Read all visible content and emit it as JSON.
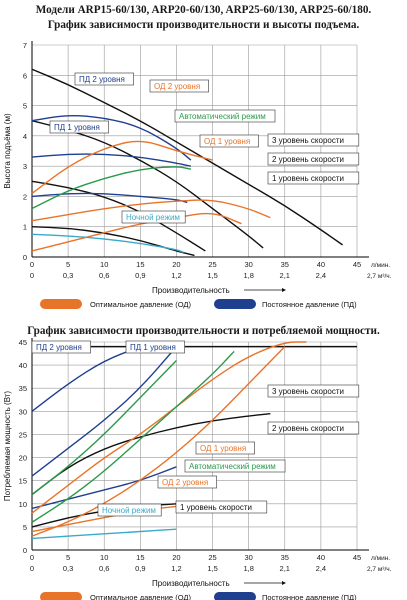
{
  "header": {
    "title_line1": "Модели ARP15-60/130, ARP20-60/130, ARP25-60/130, ARP25-60/180.",
    "title_line2": "График зависимости производительности и высоты подъема.",
    "title_chart2": "График зависимости производительности и потребляемой мощности."
  },
  "colors": {
    "od": "#e8742a",
    "pd": "#1f3f8f",
    "auto": "#2a9a4a",
    "night": "#3aa9c9",
    "black": "#111111",
    "grid": "#9a9a9a"
  },
  "legend": {
    "od_label": "Оптимальное давление (ОД)",
    "pd_label": "Постоянное давление (ПД)"
  },
  "chart_data": [
    {
      "type": "line",
      "title": "График зависимости производительности и высоты подъема.",
      "xlabel": "Производительность",
      "ylabel": "Высота подъёма (м)",
      "x_unit_top": "л/мин.",
      "x_unit_bottom": "2,7 м³/ч.",
      "xlim": [
        0,
        45
      ],
      "ylim": [
        0,
        7
      ],
      "xticks": [
        "0",
        "5",
        "10",
        "15",
        "20",
        "25",
        "30",
        "35",
        "40",
        "45"
      ],
      "xticks2": [
        "0",
        "0,3",
        "0,6",
        "0,9",
        "1,2",
        "1,5",
        "1,8",
        "2,1",
        "2,4"
      ],
      "yticks": [
        "0",
        "1",
        "2",
        "3",
        "4",
        "5",
        "6",
        "7"
      ],
      "grid": true,
      "series": [
        {
          "name": "3 уровень скорости",
          "color": "black",
          "x": [
            0,
            5,
            10,
            15,
            20,
            25,
            30,
            35,
            40,
            43
          ],
          "y": [
            6.2,
            5.7,
            5.1,
            4.5,
            3.8,
            3.1,
            2.4,
            1.7,
            0.9,
            0.4
          ]
        },
        {
          "name": "2 уровень скорости",
          "color": "black",
          "x": [
            0,
            5,
            10,
            15,
            20,
            25,
            30,
            32
          ],
          "y": [
            4.5,
            4.2,
            3.8,
            3.2,
            2.5,
            1.6,
            0.7,
            0.3
          ]
        },
        {
          "name": "1 уровень скорости",
          "color": "black",
          "x": [
            0,
            5,
            10,
            15,
            20,
            24
          ],
          "y": [
            2.5,
            2.3,
            2.0,
            1.5,
            0.8,
            0.2
          ]
        },
        {
          "name": "",
          "color": "black",
          "x": [
            0,
            5,
            10,
            15,
            20,
            22.5
          ],
          "y": [
            1.0,
            0.95,
            0.8,
            0.55,
            0.2,
            0.05
          ]
        },
        {
          "name": "ПД 2 уровня",
          "color": "pd",
          "x": [
            0,
            5,
            10,
            15,
            20,
            22
          ],
          "y": [
            4.5,
            4.7,
            4.6,
            4.3,
            3.6,
            3.2
          ]
        },
        {
          "name": "ПД 1 уровня",
          "color": "pd",
          "x": [
            0,
            5,
            10,
            15,
            20,
            22
          ],
          "y": [
            3.3,
            3.4,
            3.4,
            3.3,
            3.1,
            3.0
          ]
        },
        {
          "name": "",
          "color": "pd",
          "x": [
            0,
            5,
            10,
            15,
            20,
            21.5
          ],
          "y": [
            2.0,
            2.1,
            2.1,
            2.0,
            1.9,
            1.8
          ]
        },
        {
          "name": "ОД 2 уровня",
          "color": "od",
          "x": [
            0,
            5,
            10,
            15,
            20,
            25
          ],
          "y": [
            2.1,
            3.0,
            3.6,
            3.9,
            3.5,
            3.2
          ]
        },
        {
          "name": "ОД 1 уровня",
          "color": "od",
          "x": [
            0,
            5,
            10,
            15,
            20,
            25,
            30,
            33
          ],
          "y": [
            1.2,
            1.4,
            1.6,
            1.75,
            1.85,
            1.9,
            1.6,
            1.3
          ]
        },
        {
          "name": "",
          "color": "od",
          "x": [
            0,
            5,
            10,
            15,
            20,
            25,
            29
          ],
          "y": [
            0.2,
            0.5,
            0.8,
            1.1,
            1.3,
            1.5,
            1.1
          ]
        },
        {
          "name": "Автоматический режим",
          "color": "auto",
          "x": [
            0,
            5,
            10,
            15,
            20,
            22
          ],
          "y": [
            1.6,
            2.2,
            2.6,
            2.9,
            3.0,
            2.9
          ]
        },
        {
          "name": "Ночной режим",
          "color": "night",
          "x": [
            0,
            5,
            10,
            15,
            20,
            21
          ],
          "y": [
            0.75,
            0.7,
            0.6,
            0.45,
            0.25,
            0.15
          ]
        }
      ]
    },
    {
      "type": "line",
      "title": "График зависимости производительности и потребляемой мощности.",
      "xlabel": "Производительность",
      "ylabel": "Потребляемая мощность (Вт)",
      "x_unit_top": "л/мин.",
      "x_unit_bottom": "2,7 м³/ч.",
      "xlim": [
        0,
        45
      ],
      "ylim": [
        0,
        45
      ],
      "xticks": [
        "0",
        "5",
        "10",
        "15",
        "20",
        "25",
        "30",
        "35",
        "40",
        "45"
      ],
      "xticks2": [
        "0",
        "0,3",
        "0,6",
        "0,9",
        "1,2",
        "1,5",
        "1,8",
        "2,1",
        "2,4"
      ],
      "yticks": [
        "0",
        "5",
        "10",
        "15",
        "20",
        "25",
        "30",
        "35",
        "40",
        "45"
      ],
      "grid": true,
      "series": [
        {
          "name": "3 уровень скорости",
          "color": "black",
          "x": [
            0,
            5,
            10,
            15,
            20,
            25,
            30,
            35,
            40,
            45
          ],
          "y": [
            44,
            44,
            44,
            44,
            44,
            44,
            44,
            44,
            44,
            44
          ]
        },
        {
          "name": "2 уровень скорости",
          "color": "black",
          "x": [
            0,
            5,
            10,
            15,
            20,
            25,
            30,
            33
          ],
          "y": [
            12,
            18,
            22,
            24.5,
            26.5,
            28,
            29,
            29.5
          ]
        },
        {
          "name": "1 уровень скорости",
          "color": "black",
          "x": [
            0,
            5,
            10,
            15,
            20,
            23
          ],
          "y": [
            5,
            7,
            8.5,
            9.5,
            10,
            10.2
          ]
        },
        {
          "name": "ПД 2 уровня",
          "color": "pd",
          "x": [
            0,
            5,
            10,
            15,
            20
          ],
          "y": [
            30,
            36,
            41,
            44,
            45
          ]
        },
        {
          "name": "ПД 1 уровня",
          "color": "pd",
          "x": [
            0,
            5,
            10,
            15,
            20
          ],
          "y": [
            16,
            22,
            28,
            35,
            44
          ]
        },
        {
          "name": "",
          "color": "pd",
          "x": [
            0,
            5,
            10,
            15,
            20
          ],
          "y": [
            9,
            11,
            13,
            15,
            18
          ]
        },
        {
          "name": "ОД 2 уровня",
          "color": "od",
          "x": [
            0,
            5,
            10,
            15,
            20,
            25,
            30,
            35
          ],
          "y": [
            3,
            6,
            10,
            15,
            21,
            28,
            36,
            44
          ]
        },
        {
          "name": "ОД 1 уровня",
          "color": "od",
          "x": [
            0,
            5,
            10,
            15,
            20,
            25,
            30,
            35,
            38
          ],
          "y": [
            8,
            14,
            20,
            25,
            31,
            37,
            42,
            45,
            45
          ]
        },
        {
          "name": "",
          "color": "od",
          "x": [
            0,
            5,
            10,
            15,
            20,
            25
          ],
          "y": [
            4,
            5.5,
            7,
            8.5,
            9.5,
            10
          ]
        },
        {
          "name": "Автоматический режим",
          "color": "auto",
          "x": [
            0,
            5,
            10,
            15,
            20,
            25,
            28
          ],
          "y": [
            6,
            11,
            17,
            24,
            31,
            38,
            43
          ]
        },
        {
          "name": "",
          "color": "auto",
          "x": [
            0,
            5,
            10,
            15,
            20
          ],
          "y": [
            12,
            18,
            25,
            33,
            41
          ]
        },
        {
          "name": "Ночной режим",
          "color": "night",
          "x": [
            0,
            5,
            10,
            15,
            20
          ],
          "y": [
            2.5,
            3,
            3.5,
            4,
            4.5
          ]
        }
      ]
    }
  ]
}
